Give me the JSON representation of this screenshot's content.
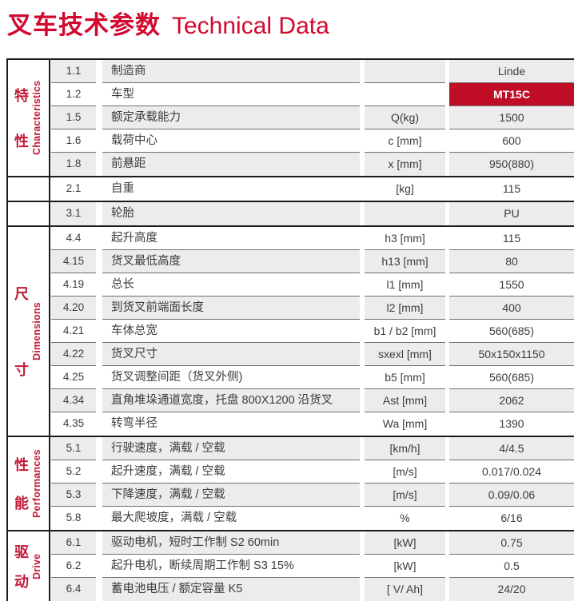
{
  "title": {
    "zh": "叉车技术参数",
    "en": "Technical Data"
  },
  "colors": {
    "title_red": "#D2082E",
    "label_red": "#C31B38",
    "model_bg": "#C00D26",
    "model_text": "#FFFFFF",
    "cell_gray": "#ECECEC",
    "text": "#3C3C3C",
    "border_dark": "#1B1B1B",
    "row_line": "#6F6F6F"
  },
  "table": {
    "sections": [
      {
        "label_zh": "特性",
        "label_en": "Characteristics",
        "rows": [
          {
            "num": "1.1",
            "desc": "制造商",
            "unit": "",
            "value": "Linde"
          },
          {
            "num": "1.2",
            "desc": "车型",
            "unit": "",
            "value": "MT15C",
            "highlight": true
          },
          {
            "num": "1.5",
            "desc": "额定承载能力",
            "unit": "Q(kg)",
            "value": "1500"
          },
          {
            "num": "1.6",
            "desc": "载荷中心",
            "unit": "c [mm]",
            "value": "600"
          },
          {
            "num": "1.8",
            "desc": "前悬距",
            "unit": "x [mm]",
            "value": "950(880)"
          }
        ]
      },
      {
        "label_zh": "",
        "label_en": "",
        "rows": [
          {
            "num": "2.1",
            "desc": "自重",
            "unit": "[kg]",
            "value": "115"
          }
        ]
      },
      {
        "label_zh": "",
        "label_en": "",
        "rows": [
          {
            "num": "3.1",
            "desc": "轮胎",
            "unit": "",
            "value": "PU"
          }
        ]
      },
      {
        "label_zh": "尺寸",
        "label_en": "Dimensions",
        "rows": [
          {
            "num": "4.4",
            "desc": "起升高度",
            "unit": "h3 [mm]",
            "value": "115"
          },
          {
            "num": "4.15",
            "desc": "货叉最低高度",
            "unit": "h13 [mm]",
            "value": "80"
          },
          {
            "num": "4.19",
            "desc": "总长",
            "unit": "l1 [mm]",
            "value": "1550"
          },
          {
            "num": "4.20",
            "desc": "到货叉前端面长度",
            "unit": "l2 [mm]",
            "value": "400"
          },
          {
            "num": "4.21",
            "desc": "车体总宽",
            "unit": "b1 / b2 [mm]",
            "value": "560(685)"
          },
          {
            "num": "4.22",
            "desc": "货叉尺寸",
            "unit": "sxexl [mm]",
            "value": "50x150x1150"
          },
          {
            "num": "4.25",
            "desc": "货叉调整间距（货叉外侧)",
            "unit": "b5 [mm]",
            "value": "560(685)"
          },
          {
            "num": "4.34",
            "desc": "直角堆垛通道宽度，托盘 800X1200 沿货叉",
            "unit": "Ast [mm]",
            "value": "2062"
          },
          {
            "num": "4.35",
            "desc": "转弯半径",
            "unit": "Wa [mm]",
            "value": "1390"
          }
        ]
      },
      {
        "label_zh": "性能",
        "label_en": "Performances",
        "rows": [
          {
            "num": "5.1",
            "desc": "行驶速度，满载 / 空载",
            "unit": "[km/h]",
            "value": "4/4.5"
          },
          {
            "num": "5.2",
            "desc": "起升速度，满载 / 空载",
            "unit": "[m/s]",
            "value": "0.017/0.024"
          },
          {
            "num": "5.3",
            "desc": "下降速度，满载 / 空载",
            "unit": "[m/s]",
            "value": "0.09/0.06"
          },
          {
            "num": "5.8",
            "desc": "最大爬坡度，满载 / 空载",
            "unit": "%",
            "value": "6/16"
          }
        ]
      },
      {
        "label_zh": "驱动",
        "label_en": "Drive",
        "rows": [
          {
            "num": "6.1",
            "desc": "驱动电机，短时工作制 S2 60min",
            "unit": "[kW]",
            "value": "0.75"
          },
          {
            "num": "6.2",
            "desc": "起升电机，断续周期工作制 S3 15%",
            "unit": "[kW]",
            "value": "0.5"
          },
          {
            "num": "6.4",
            "desc": "蓄电池电压 / 额定容量 K5",
            "unit": "[ V/ Ah]",
            "value": "24/20"
          }
        ]
      }
    ]
  }
}
